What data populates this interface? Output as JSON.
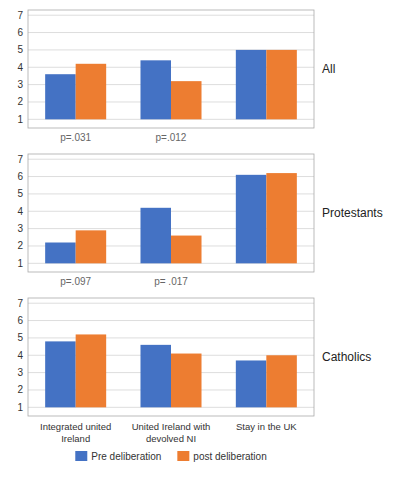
{
  "chart_data": [
    {
      "type": "bar",
      "title": "All",
      "categories": [
        "Integrated united\nIreland",
        "United Ireland with\ndevolved NI",
        "Stay in the UK"
      ],
      "series": [
        {
          "name": "Pre deliberation",
          "color": "#4472C4",
          "values": [
            3.6,
            4.4,
            5.0
          ]
        },
        {
          "name": "post deliberation",
          "color": "#ED7D31",
          "values": [
            4.2,
            3.2,
            5.0
          ]
        }
      ],
      "annotations": [
        {
          "x": "Integrated united\nIreland",
          "text": "p=.031"
        },
        {
          "x": "United Ireland with\ndevolved NI",
          "text": "p=.012"
        }
      ],
      "ylim": [
        0.5,
        7.3
      ],
      "yticks": [
        1,
        2,
        3,
        4,
        5,
        6,
        7
      ],
      "grid": true,
      "tick_labels": "y"
    },
    {
      "type": "bar",
      "title": "Protestants",
      "categories": [
        "Integrated united\nIreland",
        "United Ireland with\ndevolved NI",
        "Stay in the UK"
      ],
      "series": [
        {
          "name": "Pre deliberation",
          "color": "#4472C4",
          "values": [
            2.2,
            4.2,
            6.1
          ]
        },
        {
          "name": "post deliberation",
          "color": "#ED7D31",
          "values": [
            2.9,
            2.6,
            6.2
          ]
        }
      ],
      "annotations": [
        {
          "x": "Integrated united\nIreland",
          "text": "p=.097"
        },
        {
          "x": "United Ireland with\ndevolved NI",
          "text": "p= .017"
        }
      ],
      "ylim": [
        0.5,
        7.3
      ],
      "yticks": [
        1,
        2,
        3,
        4,
        5,
        6,
        7
      ],
      "grid": true,
      "tick_labels": "y"
    },
    {
      "type": "bar",
      "title": "Catholics",
      "categories": [
        "Integrated united\nIreland",
        "United Ireland with\ndevolved NI",
        "Stay in the UK"
      ],
      "series": [
        {
          "name": "Pre deliberation",
          "color": "#4472C4",
          "values": [
            4.8,
            4.6,
            3.7
          ]
        },
        {
          "name": "post deliberation",
          "color": "#ED7D31",
          "values": [
            5.2,
            4.1,
            4.0
          ]
        }
      ],
      "ylim": [
        0.5,
        7.3
      ],
      "yticks": [
        1,
        2,
        3,
        4,
        5,
        6,
        7
      ],
      "grid": true,
      "legend": "bottom"
    }
  ]
}
